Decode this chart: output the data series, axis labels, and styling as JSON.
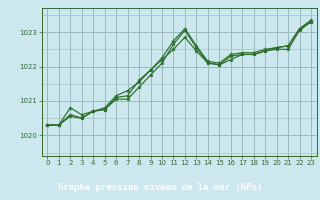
{
  "title": "Graphe pression niveau de la mer (hPa)",
  "bg_color": "#cce8ee",
  "plot_bg_color": "#cce8ee",
  "grid_color": "#99bbbb",
  "line_color": "#2d6e2d",
  "xlabel_color": "#1a4a1a",
  "xlabel_bg": "#5a8a5a",
  "ylim": [
    1019.4,
    1023.7
  ],
  "xlim": [
    -0.5,
    23.5
  ],
  "yticks": [
    1020,
    1021,
    1022,
    1023
  ],
  "xticks": [
    0,
    1,
    2,
    3,
    4,
    5,
    6,
    7,
    8,
    9,
    10,
    11,
    12,
    13,
    14,
    15,
    16,
    17,
    18,
    19,
    20,
    21,
    22,
    23
  ],
  "series1_x": [
    0,
    1,
    2,
    3,
    4,
    5,
    6,
    7,
    8,
    9,
    10,
    11,
    12,
    13,
    14,
    15,
    16,
    17,
    18,
    19,
    20,
    21,
    22,
    23
  ],
  "series1_y": [
    1020.3,
    1020.3,
    1020.55,
    1020.5,
    1020.7,
    1020.75,
    1021.05,
    1021.05,
    1021.4,
    1021.75,
    1022.1,
    1022.65,
    1023.05,
    1022.55,
    1022.1,
    1022.05,
    1022.2,
    1022.35,
    1022.35,
    1022.45,
    1022.5,
    1022.5,
    1023.05,
    1023.3
  ],
  "series2_x": [
    0,
    1,
    2,
    3,
    4,
    5,
    6,
    7,
    8,
    9,
    10,
    11,
    12,
    13,
    14,
    15,
    16,
    17,
    18,
    19,
    20,
    21,
    22,
    23
  ],
  "series2_y": [
    1020.3,
    1020.3,
    1020.8,
    1020.6,
    1020.7,
    1020.8,
    1021.15,
    1021.3,
    1021.55,
    1021.9,
    1022.2,
    1022.5,
    1022.85,
    1022.45,
    1022.1,
    1022.05,
    1022.3,
    1022.35,
    1022.35,
    1022.45,
    1022.55,
    1022.6,
    1023.1,
    1023.3
  ],
  "series3_x": [
    0,
    1,
    2,
    3,
    4,
    5,
    6,
    7,
    8,
    9,
    10,
    11,
    12,
    13,
    14,
    15,
    16,
    17,
    18,
    19,
    20,
    21,
    22,
    23
  ],
  "series3_y": [
    1020.3,
    1020.3,
    1020.6,
    1020.5,
    1020.7,
    1020.75,
    1021.1,
    1021.15,
    1021.6,
    1021.9,
    1022.25,
    1022.75,
    1023.1,
    1022.6,
    1022.15,
    1022.1,
    1022.35,
    1022.4,
    1022.4,
    1022.5,
    1022.55,
    1022.6,
    1023.1,
    1023.35
  ],
  "bottom_label_bg": "#336633",
  "bottom_label_color": "#ffffff"
}
